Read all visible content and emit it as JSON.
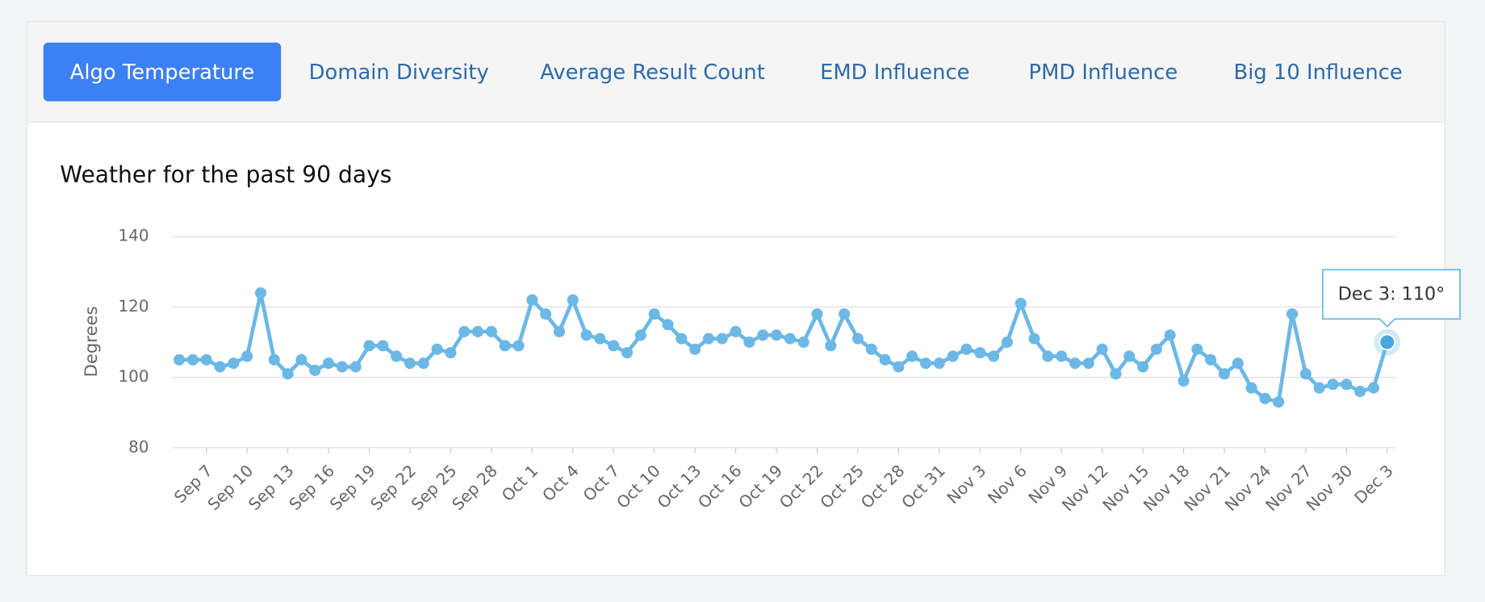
{
  "tabs": {
    "items": [
      "Algo Temperature",
      "Domain Diversity",
      "Average Result Count",
      "EMD Influence",
      "PMD Influence",
      "Big 10 Influence"
    ],
    "active": 0
  },
  "chart_data": {
    "type": "line",
    "title": "Weather for the past 90 days",
    "y_label": "Degrees",
    "categories": [
      null,
      null,
      "Sep 7",
      null,
      null,
      "Sep 10",
      null,
      null,
      "Sep 13",
      null,
      null,
      "Sep 16",
      null,
      null,
      "Sep 19",
      null,
      null,
      "Sep 22",
      null,
      null,
      "Sep 25",
      null,
      null,
      "Sep 28",
      null,
      null,
      "Oct 1",
      null,
      null,
      "Oct 4",
      null,
      null,
      "Oct 7",
      null,
      null,
      "Oct 10",
      null,
      null,
      "Oct 13",
      null,
      null,
      "Oct 16",
      null,
      null,
      "Oct 19",
      null,
      null,
      "Oct 22",
      null,
      null,
      "Oct 25",
      null,
      null,
      "Oct 28",
      null,
      null,
      "Oct 31",
      null,
      null,
      "Nov 3",
      null,
      null,
      "Nov 6",
      null,
      null,
      "Nov 9",
      null,
      null,
      "Nov 12",
      null,
      null,
      "Nov 15",
      null,
      null,
      "Nov 18",
      null,
      null,
      "Nov 21",
      null,
      null,
      "Nov 24",
      null,
      null,
      "Nov 27",
      null,
      null,
      "Nov 30",
      null,
      null,
      "Dec 3"
    ],
    "values": [
      105,
      105,
      105,
      103,
      104,
      106,
      124,
      105,
      101,
      105,
      102,
      104,
      103,
      103,
      109,
      109,
      106,
      104,
      104,
      108,
      107,
      113,
      113,
      113,
      109,
      109,
      122,
      118,
      113,
      122,
      112,
      111,
      109,
      107,
      112,
      118,
      115,
      111,
      108,
      111,
      111,
      113,
      110,
      112,
      112,
      111,
      110,
      118,
      109,
      118,
      111,
      108,
      105,
      103,
      106,
      104,
      104,
      106,
      108,
      107,
      106,
      110,
      121,
      111,
      106,
      106,
      104,
      104,
      108,
      101,
      106,
      103,
      108,
      112,
      99,
      108,
      105,
      101,
      104,
      97,
      94,
      93,
      118,
      101,
      97,
      98,
      98,
      96,
      97,
      110
    ],
    "color": "#6bb8e6",
    "ylim": [
      80,
      140
    ],
    "yticks": [
      80,
      100,
      120,
      140
    ],
    "grid": true,
    "tooltip": {
      "index": 89,
      "text": "Dec 3: 110°"
    }
  }
}
